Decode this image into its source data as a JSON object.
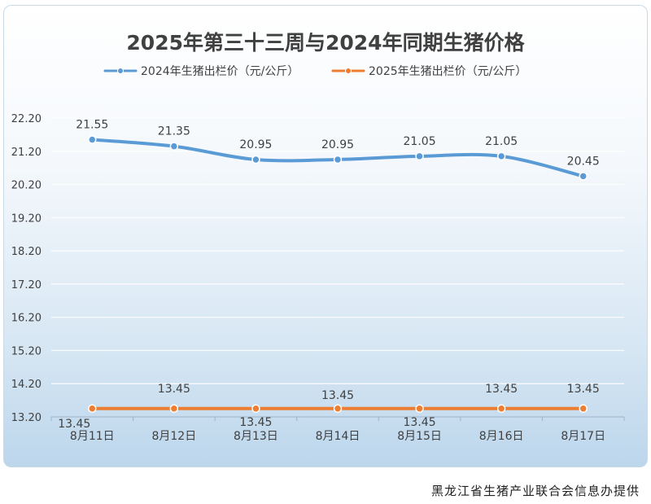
{
  "chart_data": {
    "type": "line",
    "title": "2025年第三十三周与2024年同期生猪价格",
    "categories": [
      "8月11日",
      "8月12日",
      "8月13日",
      "8月14日",
      "8月15日",
      "8月16日",
      "8月17日"
    ],
    "series": [
      {
        "name": "2024年生猪出栏价（元/公斤）",
        "values": [
          21.55,
          21.35,
          20.95,
          20.95,
          21.05,
          21.05,
          20.45
        ],
        "color": "#5b9bd5"
      },
      {
        "name": "2025年生猪出栏价（元/公斤）",
        "values": [
          13.45,
          13.45,
          13.45,
          13.45,
          13.45,
          13.45,
          13.45
        ],
        "color": "#ed7d31"
      }
    ],
    "yticks": [
      "22.20",
      "21.20",
      "20.20",
      "19.20",
      "18.20",
      "17.20",
      "16.20",
      "15.20",
      "14.20",
      "13.20"
    ],
    "ylim": [
      13.2,
      22.2
    ],
    "grid": true,
    "legend_position": "top"
  },
  "footer": {
    "credit": "黑龙江省生猪产业联合会信息办提供"
  }
}
